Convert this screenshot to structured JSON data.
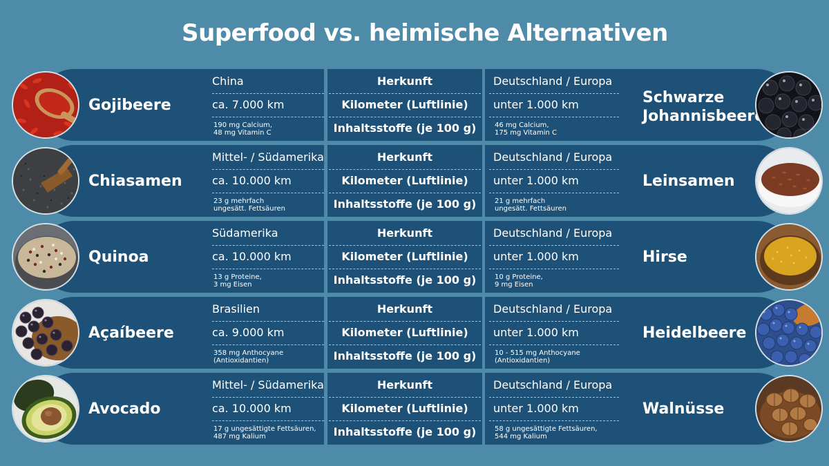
{
  "title": "Superfood vs. heimische Alternativen",
  "labels": {
    "origin": "Herkunft",
    "distance": "Kilometer (Luftlinie)",
    "nutrients": "Inhaltsstoffe (je 100 g)"
  },
  "rows": [
    {
      "superfood": "Gojibeere",
      "superfood_origin": "China",
      "superfood_distance": "ca. 7.000 km",
      "superfood_nutrients": "190 mg Calcium,\n48 mg Vitamin C",
      "alternative": "Schwarze Johannisbeere",
      "alternative_origin": "Deutschland / Europa",
      "alternative_distance": "unter 1.000 km",
      "alternative_nutrients": "46 mg Calcium,\n175 mg Vitamin C"
    },
    {
      "superfood": "Chiasamen",
      "superfood_origin": "Mittel- / Südamerika",
      "superfood_distance": "ca. 10.000 km",
      "superfood_nutrients": "23 g mehrfach\nungesätt. Fettsäuren",
      "alternative": "Leinsamen",
      "alternative_origin": "Deutschland / Europa",
      "alternative_distance": "unter 1.000 km",
      "alternative_nutrients": "21 g mehrfach\nungesätt. Fettsäuren"
    },
    {
      "superfood": "Quinoa",
      "superfood_origin": "Südamerika",
      "superfood_distance": "ca. 10.000 km",
      "superfood_nutrients": "13 g Proteine,\n3 mg Eisen",
      "alternative": "Hirse",
      "alternative_origin": "Deutschland / Europa",
      "alternative_distance": "unter 1.000 km",
      "alternative_nutrients": "10 g Proteine,\n9 mg Eisen"
    },
    {
      "superfood": "Açaíbeere",
      "superfood_origin": "Brasilien",
      "superfood_distance": "ca. 9.000 km",
      "superfood_nutrients": "358 mg Anthocyane\n(Antioxidantien)",
      "alternative": "Heidelbeere",
      "alternative_origin": "Deutschland / Europa",
      "alternative_distance": "unter 1.000 km",
      "alternative_nutrients": "10 - 515 mg Anthocyane\n(Antioxidantien)"
    },
    {
      "superfood": "Avocado",
      "superfood_origin": "Mittel- / Südamerika",
      "superfood_distance": "ca. 10.000 km",
      "superfood_nutrients": "17 g ungesättigte Fettsäuren,\n487 mg Kalium",
      "alternative": "Walnüsse",
      "alternative_origin": "Deutschland / Europa",
      "alternative_distance": "unter 1.000 km",
      "alternative_nutrients": "58 g ungesättigte Fettsäuren,\n544 mg Kalium"
    }
  ],
  "colors": {
    "background": "#4d8ba8",
    "band": "#1e5178",
    "text": "#ffffff"
  }
}
